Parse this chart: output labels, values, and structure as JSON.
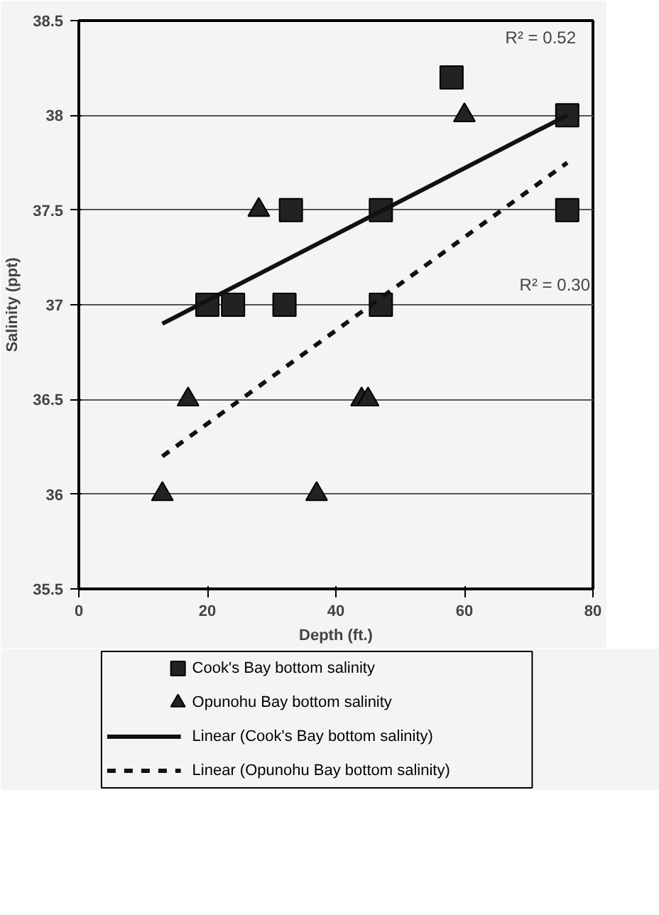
{
  "chart_data": {
    "type": "scatter",
    "xlabel": "Depth (ft.)",
    "ylabel": "Salinity (ppt)",
    "xlim": [
      0,
      80
    ],
    "xticks": [
      0,
      20,
      40,
      60,
      80
    ],
    "ylim": [
      35.5,
      38.5
    ],
    "yticks": [
      35.5,
      36,
      36.5,
      37,
      37.5,
      38,
      38.5
    ],
    "grid": "y",
    "legend": "bottom",
    "series": [
      {
        "name": "Cook's Bay bottom salinity",
        "marker": "square",
        "color": "#222222",
        "x": [
          20,
          24,
          32,
          47,
          33,
          47,
          58,
          76,
          76
        ],
        "values": [
          37,
          37,
          37,
          37,
          37.5,
          37.5,
          38.2,
          38,
          37.5
        ]
      },
      {
        "name": "Opunohu Bay bottom salinity",
        "marker": "triangle",
        "color": "#222222",
        "x": [
          60,
          28,
          17,
          44,
          45,
          13,
          37
        ],
        "values": [
          38,
          37.5,
          36.5,
          36.5,
          36.5,
          36,
          36
        ]
      },
      {
        "name": "Linear (Cook's Bay bottom salinity)",
        "type": "line",
        "line_style": "solid",
        "color": "#111111",
        "x": [
          13,
          76
        ],
        "values": [
          36.9,
          38
        ]
      },
      {
        "name": "Linear (Opunohu Bay bottom salinity)",
        "type": "line",
        "line_style": "dashed",
        "color": "#111111",
        "x": [
          13,
          76
        ],
        "values": [
          36.2,
          37.75
        ]
      }
    ],
    "annotations": [
      "R² = 0.52",
      "R² = 0.30"
    ]
  }
}
